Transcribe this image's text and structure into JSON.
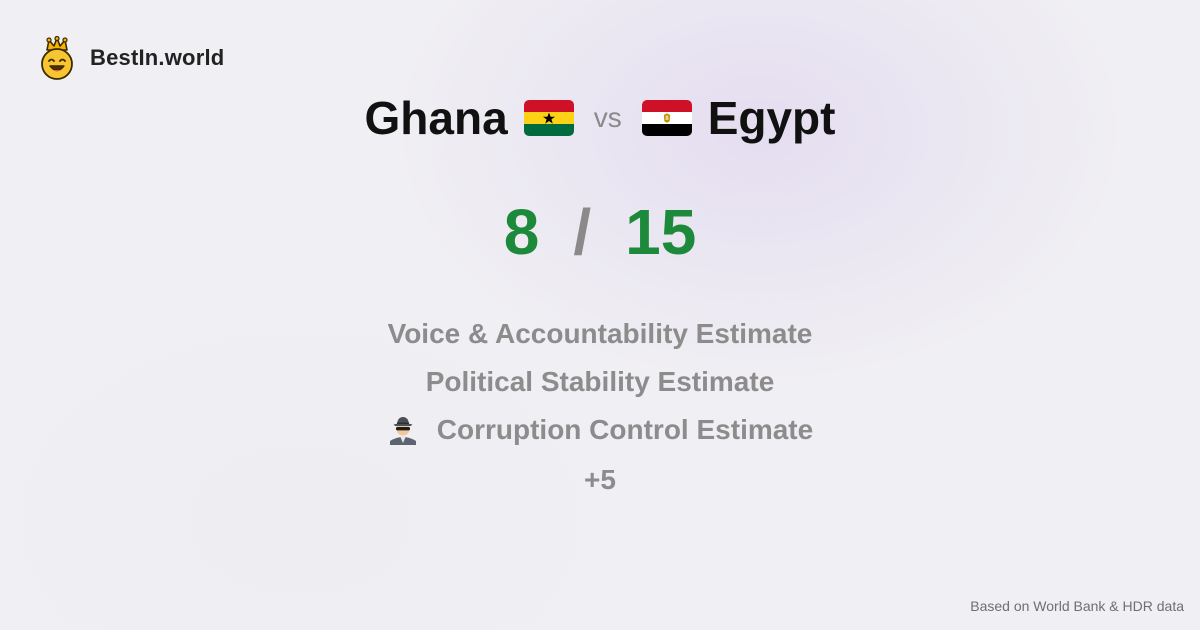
{
  "brand": {
    "logo_icon": "crowned-smiley-icon",
    "name": "BestIn.world"
  },
  "title": {
    "country_a": "Ghana",
    "flag_a": "ghana-flag-icon",
    "vs_label": "vs",
    "country_b": "Egypt",
    "flag_b": "egypt-flag-icon"
  },
  "score": {
    "a": "8",
    "separator": "/",
    "b": "15",
    "color": "#1c8a3a"
  },
  "metrics": [
    {
      "label": "Voice & Accountability Estimate",
      "icon": ""
    },
    {
      "label": "Political Stability Estimate",
      "icon": ""
    },
    {
      "label": "Corruption Control Estimate",
      "icon": "spy-detective-icon"
    }
  ],
  "more_label": "+5",
  "footer": {
    "source_text": "Based on World Bank & HDR data"
  }
}
